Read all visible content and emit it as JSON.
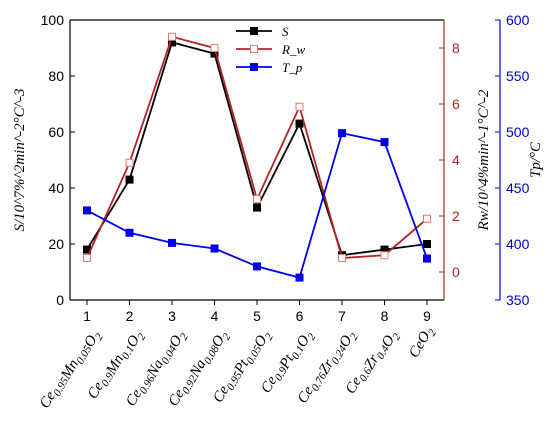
{
  "chart_data": {
    "type": "line",
    "categories": [
      "Ce0.95Mn0.05O2",
      "Ce0.9Mn0.1O2",
      "Ce0.96Na0.04O2",
      "Ce0.92Na0.08O2",
      "Ce0.95Pt0.05O2",
      "Ce0.9Pt0.1O2",
      "Ce0.76Zr0.24O2",
      "Ce0.6Zr0.4O2",
      "CeO2"
    ],
    "x": [
      1,
      2,
      3,
      4,
      5,
      6,
      7,
      8,
      9
    ],
    "axes": {
      "left": {
        "label": "S/10^7%^2min^-2°C^-3",
        "ylim": [
          0,
          100
        ],
        "ticks": [
          0,
          20,
          40,
          60,
          80,
          100
        ],
        "color": "#000000"
      },
      "right1": {
        "label": "Rw/10^4%min^-1°C^-2",
        "ylim": [
          -1,
          9
        ],
        "ticks": [
          0,
          2,
          4,
          6,
          8
        ],
        "color": "#b22222"
      },
      "right2": {
        "label": "Tp/°C",
        "ylim": [
          350,
          600
        ],
        "ticks": [
          350,
          400,
          450,
          500,
          550,
          600
        ],
        "color": "#0000cc"
      }
    },
    "series": [
      {
        "name": "S",
        "axis": "left",
        "color": "#000000",
        "marker": "filled-square",
        "values": [
          18,
          43,
          92,
          88,
          33,
          63,
          16,
          18,
          20
        ]
      },
      {
        "name": "R_w",
        "axis": "right1",
        "color": "#b22222",
        "marker": "open-square",
        "values": [
          0.5,
          3.9,
          8.4,
          8.0,
          2.6,
          5.9,
          0.5,
          0.6,
          1.9
        ]
      },
      {
        "name": "T_p",
        "axis": "right2",
        "color": "#0000ee",
        "marker": "filled-square",
        "values": [
          430,
          410,
          401,
          396,
          380,
          370,
          499,
          491,
          387
        ]
      }
    ],
    "grid": false,
    "legend": "top-center"
  }
}
